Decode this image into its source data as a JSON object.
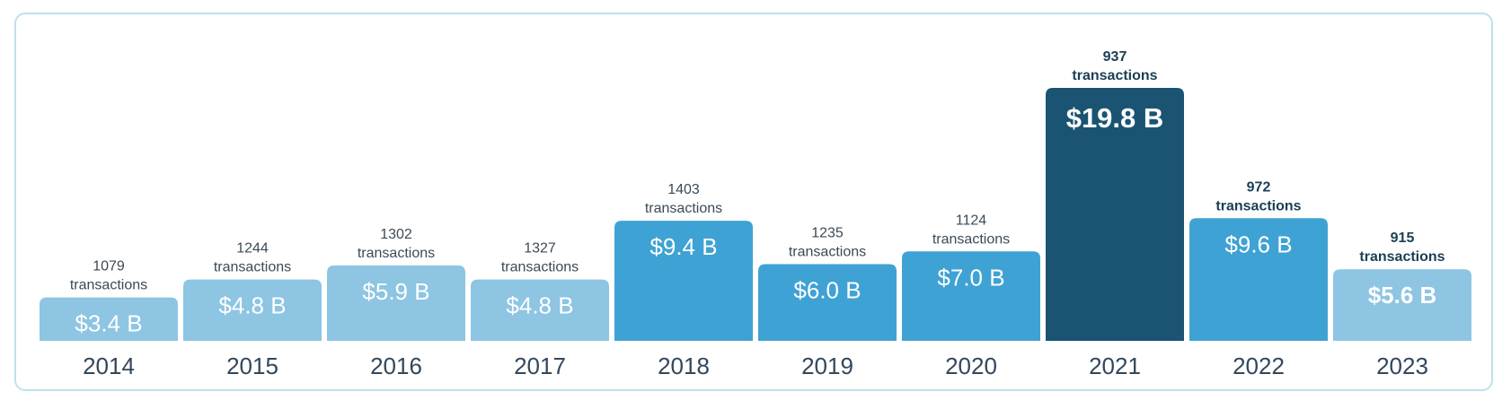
{
  "chart_data": {
    "type": "bar",
    "categories": [
      "2014",
      "2015",
      "2016",
      "2017",
      "2018",
      "2019",
      "2020",
      "2021",
      "2022",
      "2023"
    ],
    "values": [
      3.4,
      4.8,
      5.9,
      4.8,
      9.4,
      6.0,
      7.0,
      19.8,
      9.6,
      5.6
    ],
    "value_labels": [
      "$3.4 B",
      "$4.8 B",
      "$5.9 B",
      "$4.8 B",
      "$9.4 B",
      "$6.0 B",
      "$7.0 B",
      "$19.8 B",
      "$9.6 B",
      "$5.6 B"
    ],
    "transactions": [
      1079,
      1244,
      1302,
      1327,
      1403,
      1235,
      1124,
      937,
      972,
      915
    ],
    "transactions_label": "transactions",
    "bar_colors": [
      "#8dc5e3",
      "#8dc5e3",
      "#8dc5e3",
      "#8dc5e3",
      "#3fa2d4",
      "#3fa2d4",
      "#3fa2d4",
      "#1b5472",
      "#3fa2d4",
      "#8dc5e3"
    ],
    "bold_labels": [
      false,
      false,
      false,
      false,
      false,
      false,
      false,
      true,
      true,
      true
    ],
    "ylim": [
      0,
      21
    ],
    "grid": false,
    "legend": "none"
  }
}
